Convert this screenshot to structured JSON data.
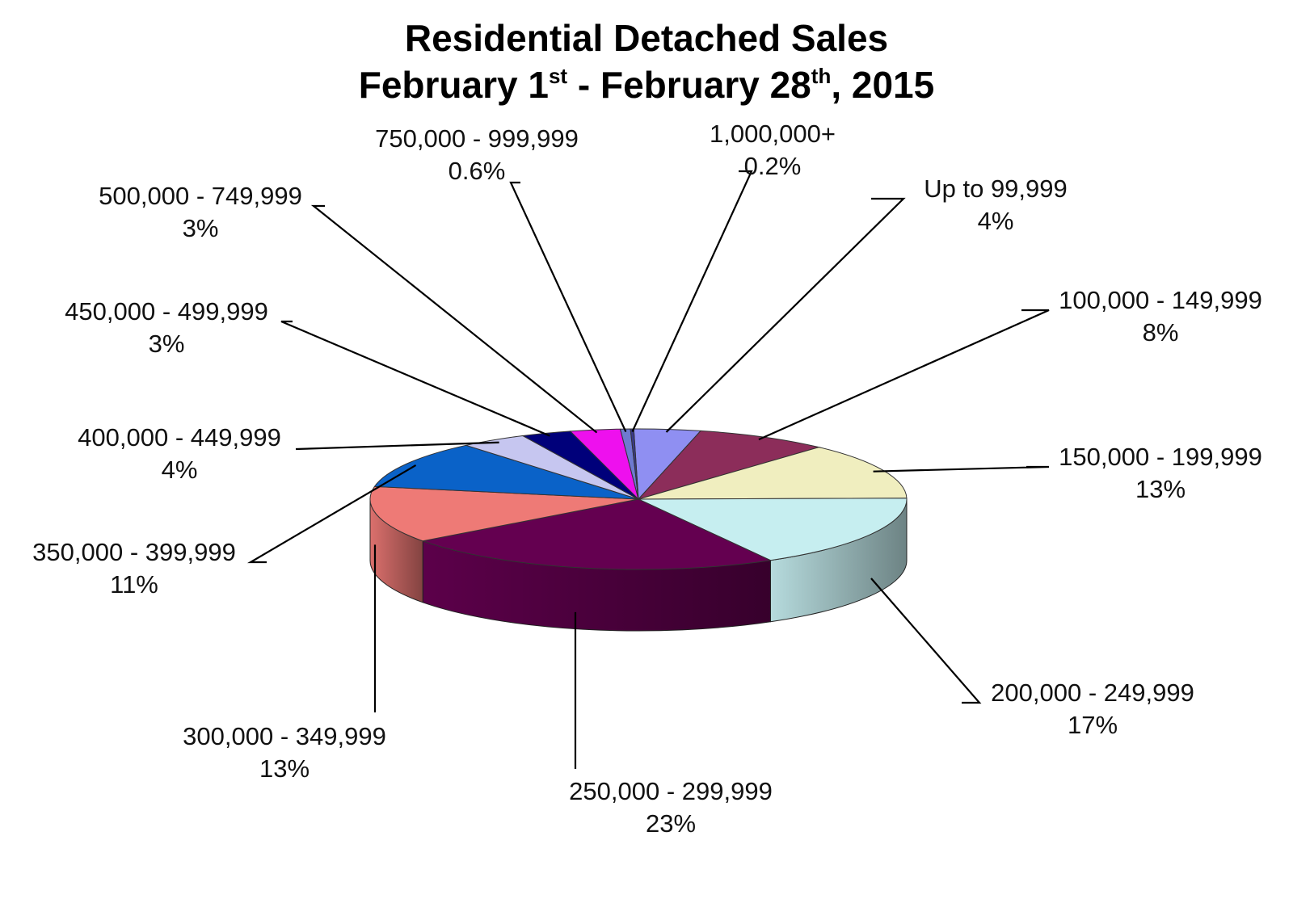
{
  "chart_data": {
    "type": "pie",
    "title": {
      "line1": "Residential Detached Sales",
      "line2_a": "February 1",
      "line2_sup_a": "st",
      "line2_b": " - February 28",
      "line2_sup_b": "th",
      "line2_c": ", 2015"
    },
    "slices": [
      {
        "label": "Up to 99,999",
        "percent_label": "4%",
        "value": 4,
        "color": "#8f8ff2"
      },
      {
        "label": "100,000 - 149,999",
        "percent_label": "8%",
        "value": 8,
        "color": "#8c2d5a"
      },
      {
        "label": "150,000 - 199,999",
        "percent_label": "13%",
        "value": 13,
        "color": "#f0eebf"
      },
      {
        "label": "200,000 - 249,999",
        "percent_label": "17%",
        "value": 17,
        "color": "#c6eef0"
      },
      {
        "label": "250,000 - 299,999",
        "percent_label": "23%",
        "value": 23,
        "color": "#640050"
      },
      {
        "label": "300,000 - 349,999",
        "percent_label": "13%",
        "value": 13,
        "color": "#ee7a76"
      },
      {
        "label": "350,000 - 399,999",
        "percent_label": "11%",
        "value": 11,
        "color": "#0a62c8"
      },
      {
        "label": "400,000 - 449,999",
        "percent_label": "4%",
        "value": 4,
        "color": "#c6c6f0"
      },
      {
        "label": "450,000 - 499,999",
        "percent_label": "3%",
        "value": 3,
        "color": "#00007a"
      },
      {
        "label": "500,000 - 749,999",
        "percent_label": "3%",
        "value": 3,
        "color": "#ee10ee"
      },
      {
        "label": "750,000 - 999,999",
        "percent_label": "0.6%",
        "value": 0.6,
        "color": "#6e7ad0"
      },
      {
        "label": "1,000,000+",
        "percent_label": "0.2%",
        "value": 0.2,
        "color": "#3a3a8a"
      }
    ],
    "legend": "none",
    "style": "3d-pie"
  }
}
